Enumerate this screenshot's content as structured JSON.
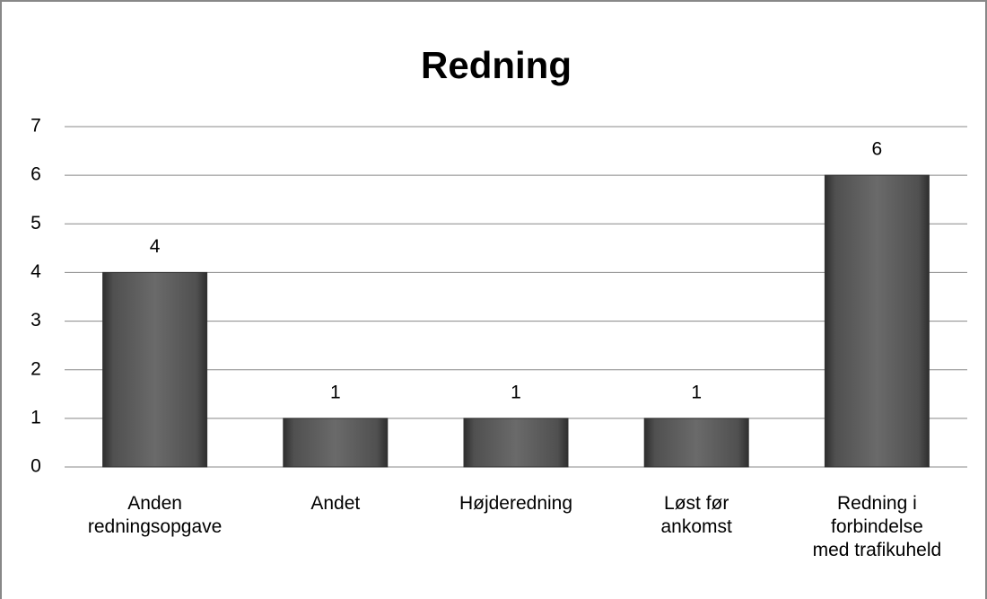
{
  "chart_data": {
    "type": "bar",
    "title": "Redning",
    "categories": [
      "Anden\nredningsopgave",
      "Andet",
      "Højderedning",
      "Løst før\nankomst",
      "Redning i\nforbindelse\nmed trafikuheld"
    ],
    "values": [
      4,
      1,
      1,
      1,
      6
    ],
    "color": "#555555",
    "ylim": [
      0,
      7
    ],
    "yticks": [
      0,
      1,
      2,
      3,
      4,
      5,
      6,
      7
    ],
    "grid": true
  }
}
